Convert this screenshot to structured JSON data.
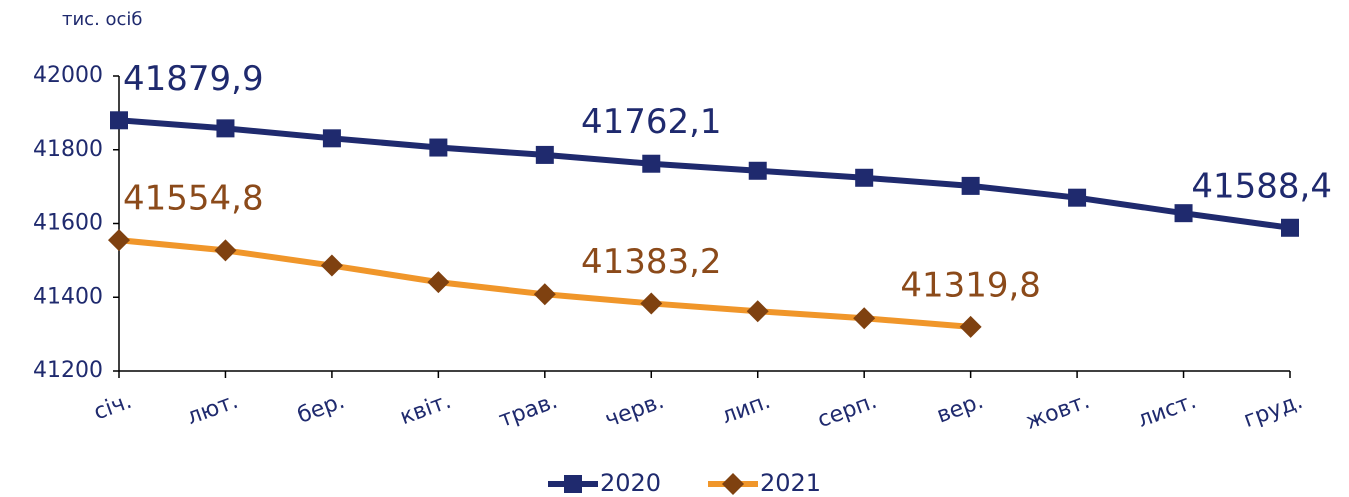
{
  "chart_data": {
    "type": "line",
    "y_axis_label": "тис. осіб",
    "categories": [
      "січ.",
      "лют.",
      "бер.",
      "квіт.",
      "трав.",
      "черв.",
      "лип.",
      "серп.",
      "вер.",
      "жовт.",
      "лист.",
      "груд."
    ],
    "series": [
      {
        "name": "2020",
        "color": "#1f2a6e",
        "marker": "square",
        "marker_color": "#1f2a6e",
        "label_color": "#1f2a6e",
        "values": [
          41879.9,
          41858,
          41831,
          41806,
          41786,
          41762.1,
          41743,
          41724,
          41702,
          41670,
          41628,
          41588.4
        ],
        "value_labels": [
          "41879,9",
          null,
          null,
          null,
          null,
          "41762,1",
          null,
          null,
          null,
          null,
          null,
          "41588,4"
        ]
      },
      {
        "name": "2021",
        "color": "#f0962a",
        "marker": "diamond",
        "marker_color": "#7f4110",
        "label_color": "#8b4a1a",
        "values": [
          41554.8,
          41527,
          41486,
          41441,
          41408,
          41383.2,
          41362,
          41343,
          41319.8,
          null,
          null,
          null
        ],
        "value_labels": [
          "41554,8",
          null,
          null,
          null,
          null,
          "41383,2",
          null,
          null,
          "41319,8",
          null,
          null,
          null
        ]
      }
    ],
    "ylim": [
      41200,
      42000
    ],
    "yticks": [
      41200,
      41400,
      41600,
      41800,
      42000
    ],
    "grid": false,
    "legend": "bottom"
  }
}
